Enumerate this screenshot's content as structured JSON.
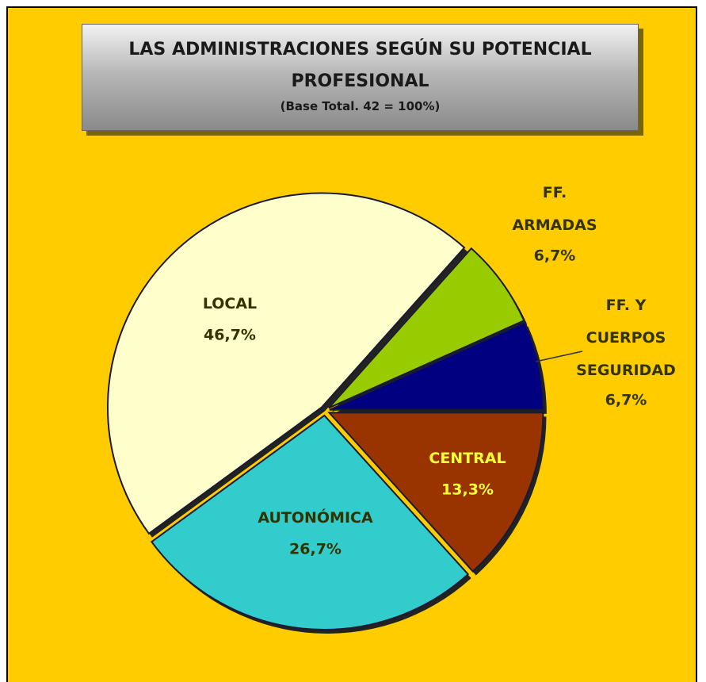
{
  "chart_data": {
    "type": "pie",
    "title": "LAS ADMINISTRACIONES SEGÚN SU POTENCIAL PROFESIONAL",
    "subtitle": "(Base Total. 42 = 100%)",
    "categories": [
      "CENTRAL",
      "AUTONÓMICA",
      "LOCAL",
      "FF.\nARMADAS",
      "FF. Y\nCUERPOS\nSEGURIDAD"
    ],
    "values": [
      13.3,
      26.7,
      46.7,
      6.7,
      6.7
    ],
    "value_labels": [
      "13,3%",
      "26,7%",
      "46,7%",
      "6,7%",
      "6,7%"
    ],
    "colors": [
      "#993300",
      "#33CCCC",
      "#FFFFCC",
      "#99CC00",
      "#000080"
    ]
  }
}
